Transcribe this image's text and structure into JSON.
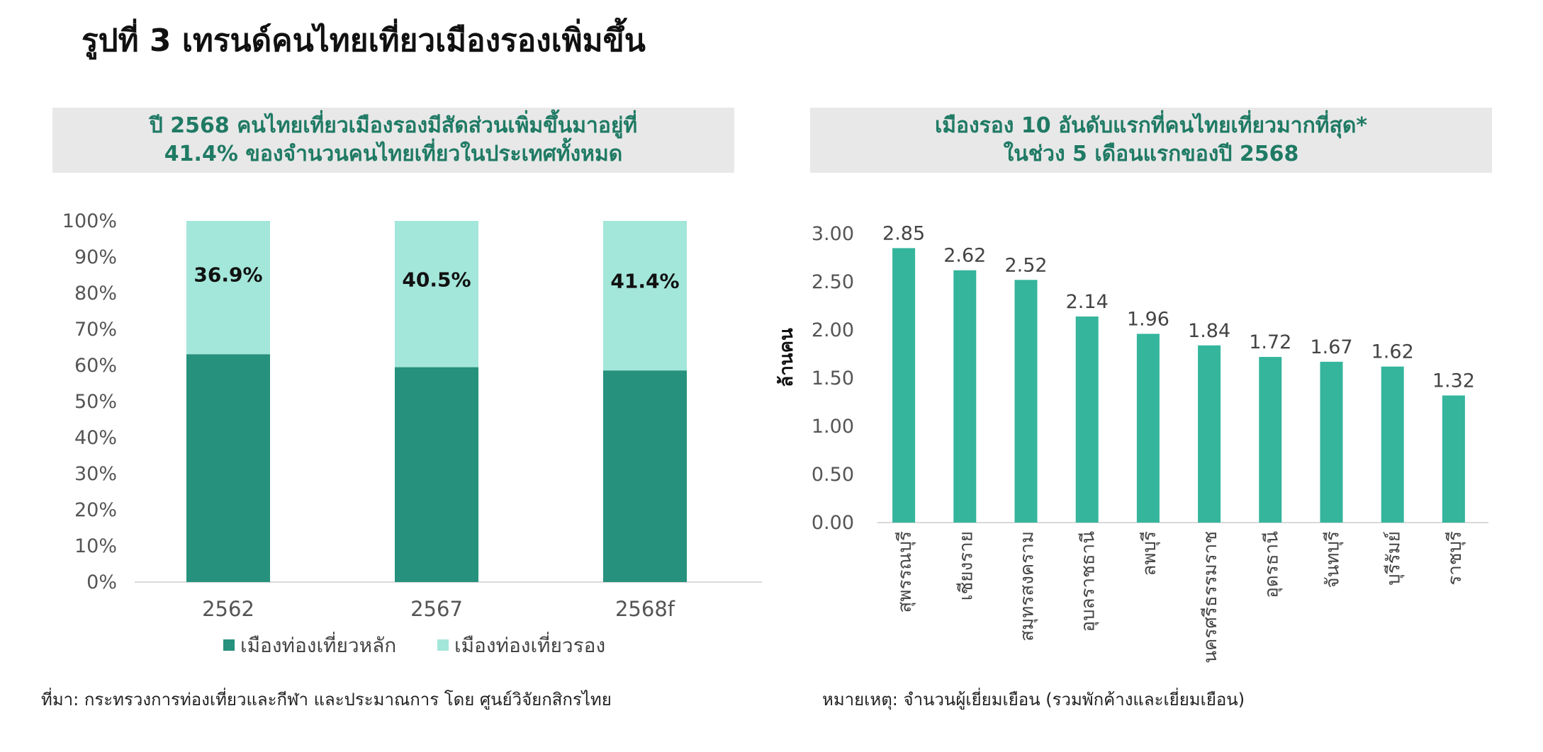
{
  "page_title": "รูปที่ 3 เทรนด์คนไทยเที่ยวเมืองรองเพิ่มขึ้น",
  "colors": {
    "main": "#26917c",
    "secondary": "#a3e6da",
    "bar": "#34b59c",
    "header_text": "#1f7a64",
    "header_bg": "#e8e8e8"
  },
  "left": {
    "header_line1": "ปี 2568 คนไทยเที่ยวเมืองรองมีสัดส่วนเพิ่มขึ้นมาอยู่ที่",
    "header_line2": "41.4% ของจำนวนคนไทยเที่ยวในประเทศทั้งหมด",
    "footnote": "ที่มา: กระทรวงการท่องเที่ยวและกีฬา และประมาณการ โดย ศูนย์วิจัยกสิกรไทย"
  },
  "right": {
    "header_line1": "เมืองรอง 10 อันดับแรกที่คนไทยเที่ยวมากที่สุด*",
    "header_line2": "ในช่วง 5 เดือนแรกของปี 2568",
    "footnote": "หมายเหตุ: จำนวนผู้เยี่ยมเยือน (รวมพักค้างและเยี่ยมเยือน)"
  },
  "chart_data": [
    {
      "type": "bar",
      "stacked": true,
      "categories": [
        "2562",
        "2567",
        "2568f"
      ],
      "series": [
        {
          "name": "เมืองท่องเที่ยวหลัก",
          "values": [
            63.1,
            59.5,
            58.6
          ],
          "color": "#26917c"
        },
        {
          "name": "เมืองท่องเที่ยวรอง",
          "values": [
            36.9,
            40.5,
            41.4
          ],
          "color": "#a3e6da"
        }
      ],
      "data_labels": [
        "36.9%",
        "40.5%",
        "41.4%"
      ],
      "ylim": [
        0,
        100
      ],
      "yticks": [
        "0%",
        "10%",
        "20%",
        "30%",
        "40%",
        "50%",
        "60%",
        "70%",
        "80%",
        "90%",
        "100%"
      ],
      "legend": "bottom",
      "grid": false
    },
    {
      "type": "bar",
      "categories": [
        "สุพรรณบุรี",
        "เชียงราย",
        "สมุทรสงคราม",
        "อุบลราชธานี",
        "ลพบุรี",
        "นครศรีธรรมราช",
        "อุดรธานี",
        "จันทบุรี",
        "บุรีรัมย์",
        "ราชบุรี"
      ],
      "values": [
        2.85,
        2.62,
        2.52,
        2.14,
        1.96,
        1.84,
        1.72,
        1.67,
        1.62,
        1.32
      ],
      "data_labels": [
        "2.85",
        "2.62",
        "2.52",
        "2.14",
        "1.96",
        "1.84",
        "1.72",
        "1.67",
        "1.62",
        "1.32"
      ],
      "ylabel": "ล้านคน",
      "ylim": [
        0,
        3
      ],
      "yticks": [
        "0.00",
        "0.50",
        "1.00",
        "1.50",
        "2.00",
        "2.50",
        "3.00"
      ],
      "grid": false
    }
  ]
}
